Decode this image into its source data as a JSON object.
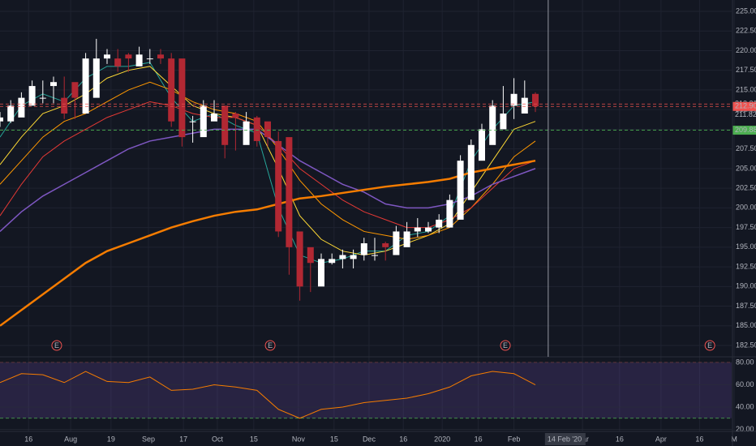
{
  "chart_data": {
    "type": "candlestick",
    "xlim": [
      0,
      205
    ],
    "xticks": [
      {
        "value": 8,
        "label": "16"
      },
      {
        "value": 19.8,
        "label": "Aug"
      },
      {
        "value": 31.1,
        "label": "19"
      },
      {
        "value": 41.6,
        "label": "Sep"
      },
      {
        "value": 51.4,
        "label": "17"
      },
      {
        "value": 60.9,
        "label": "Oct"
      },
      {
        "value": 71.1,
        "label": "15"
      },
      {
        "value": 83.6,
        "label": "Nov"
      },
      {
        "value": 93.6,
        "label": "15"
      },
      {
        "value": 103.4,
        "label": "Dec"
      },
      {
        "value": 113,
        "label": "16"
      },
      {
        "value": 123.9,
        "label": "2020"
      },
      {
        "value": 134,
        "label": "16"
      },
      {
        "value": 144,
        "label": "Feb"
      },
      {
        "value": 163.2,
        "label": "Mar"
      },
      {
        "value": 173.6,
        "label": "16"
      },
      {
        "value": 185.2,
        "label": "Apr"
      },
      {
        "value": 196,
        "label": "16"
      },
      {
        "value": 205.7,
        "label": "M"
      }
    ],
    "ylim": [
      181.06,
      226.44
    ],
    "yticks": [
      {
        "value": 225,
        "label": "225.00"
      },
      {
        "value": 222.5,
        "label": "222.50"
      },
      {
        "value": 220,
        "label": "220.00"
      },
      {
        "value": 217.5,
        "label": "217.50"
      },
      {
        "value": 215,
        "label": "215.00"
      },
      {
        "value": 212.5,
        "label": "212.50"
      },
      {
        "value": 210,
        "label": "210.00"
      },
      {
        "value": 207.5,
        "label": "207.50"
      },
      {
        "value": 205,
        "label": "205.00"
      },
      {
        "value": 202.5,
        "label": "202.50"
      },
      {
        "value": 200,
        "label": "200.00"
      },
      {
        "value": 197.5,
        "label": "197.50"
      },
      {
        "value": 195,
        "label": "195.00"
      },
      {
        "value": 192.5,
        "label": "192.50"
      },
      {
        "value": 190,
        "label": "190.00"
      },
      {
        "value": 187.5,
        "label": "187.50"
      },
      {
        "value": 185,
        "label": "185.00"
      },
      {
        "value": 182.5,
        "label": "182.50"
      }
    ],
    "grid": true,
    "up_color": "#ffffff",
    "down_color": "#b22833",
    "candles": {
      "x": [
        0,
        3,
        6,
        9,
        12,
        15,
        18,
        21,
        24,
        27,
        30,
        33,
        36,
        39,
        42,
        45,
        48,
        51,
        54,
        57,
        60,
        63,
        66,
        69,
        72,
        75,
        78,
        81,
        84,
        87,
        90,
        93,
        96,
        99,
        102,
        105,
        108,
        111,
        114,
        117,
        120,
        123,
        126,
        129,
        132,
        135,
        138,
        141,
        144,
        147,
        150
      ],
      "open": [
        211,
        211,
        211.5,
        213,
        214,
        215.5,
        214,
        216,
        212,
        214,
        219,
        219,
        219.5,
        218,
        219,
        219.5,
        219,
        219,
        211,
        209,
        211,
        213,
        212,
        208,
        211.5,
        211,
        208.5,
        209,
        197,
        195,
        190,
        193,
        193.5,
        193.5,
        194,
        194,
        195.5,
        194,
        195,
        197,
        197,
        197.5,
        197.5,
        198.5,
        201,
        206,
        208,
        210,
        213,
        212,
        214.5
      ],
      "high": [
        212.2,
        213.7,
        214.7,
        216.2,
        216.2,
        216.7,
        216.7,
        214.7,
        219.7,
        221.5,
        220.2,
        220.2,
        219.7,
        220.5,
        220.2,
        220.2,
        219.7,
        211.7,
        211.7,
        213.7,
        213.7,
        212.7,
        212.2,
        212.2,
        211.7,
        209.7,
        209.7,
        197.7,
        195.7,
        193.7,
        194.2,
        194.2,
        194.7,
        194.7,
        196.2,
        196.2,
        195.7,
        197.7,
        198.2,
        198.7,
        198.2,
        199.2,
        201.7,
        206.7,
        208.7,
        210.7,
        213.7,
        215.5,
        216.5,
        216.2,
        214.7
      ],
      "low": [
        210.3,
        210.8,
        212.3,
        213.3,
        213.3,
        213.3,
        211.3,
        211.3,
        213.3,
        218.3,
        218.3,
        217.3,
        217.3,
        218.3,
        218.3,
        218.3,
        210.3,
        207.8,
        208.3,
        210.3,
        211.3,
        206.3,
        207.3,
        210.3,
        207.8,
        207.8,
        196.3,
        191.5,
        188.2,
        189.3,
        192.3,
        192.8,
        192.3,
        192.3,
        193.3,
        193.3,
        193.3,
        194.3,
        196.3,
        196.3,
        196.8,
        196.8,
        197.8,
        200.3,
        205.3,
        207.3,
        209.3,
        211.3,
        211.3,
        213.3,
        212.2
      ],
      "close": [
        211.5,
        213,
        214,
        215.5,
        214,
        216,
        212,
        214,
        219,
        219,
        219.5,
        218,
        219,
        219.5,
        219,
        219,
        211,
        209,
        211,
        213,
        212,
        208,
        211.5,
        211,
        208.5,
        209,
        197,
        195,
        190,
        193,
        193.5,
        193.5,
        194,
        194,
        195.5,
        194,
        195,
        197,
        197,
        197.5,
        197.5,
        198.5,
        201,
        206,
        208,
        210,
        213,
        212,
        214.5,
        214,
        212.9
      ]
    },
    "series": [
      {
        "color": "#26a69a",
        "width": 1,
        "x": [
          0,
          6,
          12,
          18,
          24,
          30,
          36,
          42,
          48,
          54,
          60,
          66,
          72,
          78,
          84,
          90,
          96,
          102,
          108,
          114,
          120,
          126,
          132,
          138,
          144,
          150
        ],
        "values": [
          209,
          213,
          214.5,
          213.5,
          216.5,
          218,
          218,
          218.5,
          214,
          211,
          212,
          210.5,
          209.5,
          200,
          194,
          193,
          193.5,
          194.5,
          194.5,
          196.5,
          197,
          199,
          206,
          210,
          213,
          213.5
        ]
      },
      {
        "color": "#fdd835",
        "width": 1,
        "x": [
          0,
          6,
          12,
          18,
          24,
          30,
          36,
          42,
          48,
          54,
          60,
          66,
          72,
          78,
          84,
          90,
          96,
          102,
          108,
          114,
          120,
          126,
          132,
          138,
          144,
          150
        ],
        "values": [
          205.5,
          209,
          212,
          213,
          214.5,
          216.5,
          217.5,
          218,
          215.5,
          213,
          212,
          211.5,
          210.5,
          205,
          199,
          196,
          194.5,
          194,
          194.5,
          195.5,
          196.5,
          198,
          202,
          206,
          210,
          211
        ]
      },
      {
        "color": "#ff9800",
        "width": 1,
        "x": [
          0,
          6,
          12,
          18,
          24,
          30,
          36,
          42,
          48,
          54,
          60,
          66,
          72,
          78,
          84,
          90,
          96,
          102,
          108,
          114,
          120,
          126,
          132,
          138,
          144,
          150
        ],
        "values": [
          203,
          206,
          209,
          211,
          212,
          213.5,
          215,
          216,
          215,
          213.5,
          212.5,
          212,
          211,
          207.5,
          203.5,
          200.5,
          198.5,
          197,
          196.5,
          196,
          196.5,
          197.5,
          200,
          203,
          206.5,
          208.5
        ]
      },
      {
        "color": "#e53935",
        "width": 1,
        "x": [
          0,
          6,
          12,
          18,
          24,
          30,
          36,
          42,
          48,
          54,
          60,
          66,
          72,
          78,
          84,
          90,
          96,
          102,
          108,
          114,
          120,
          126,
          132,
          138,
          144,
          150
        ],
        "values": [
          199,
          203,
          206.5,
          208.5,
          210,
          211.5,
          212.5,
          213.5,
          213,
          212,
          211.5,
          211.5,
          210.5,
          208,
          205,
          203,
          201,
          199.5,
          198.5,
          197.5,
          197.5,
          198.5,
          200,
          202.5,
          205,
          206
        ]
      },
      {
        "color": "#7e57c2",
        "width": 1.5,
        "x": [
          0,
          6,
          12,
          18,
          24,
          30,
          36,
          42,
          48,
          54,
          60,
          66,
          72,
          78,
          84,
          90,
          96,
          102,
          108,
          114,
          120,
          126,
          132,
          138,
          144,
          150
        ],
        "values": [
          197,
          199.5,
          201.5,
          203,
          204.5,
          206,
          207.5,
          208.5,
          209,
          209.5,
          210,
          210,
          210,
          208,
          206,
          204.5,
          203,
          202,
          200.5,
          200,
          200,
          200.5,
          201.5,
          203,
          204,
          205
        ]
      },
      {
        "color": "#f57c00",
        "width": 2.5,
        "x": [
          0,
          6,
          12,
          18,
          24,
          30,
          36,
          42,
          48,
          54,
          60,
          66,
          72,
          78,
          84,
          90,
          96,
          102,
          108,
          114,
          120,
          126,
          132,
          138,
          144,
          150
        ],
        "values": [
          185,
          187,
          189,
          191,
          193,
          194.5,
          195.5,
          196.5,
          197.5,
          198.3,
          199,
          199.5,
          199.8,
          200.5,
          201.2,
          201.5,
          201.9,
          202.3,
          202.7,
          203,
          203.3,
          203.7,
          204.5,
          205,
          205.5,
          206
        ]
      }
    ],
    "price_lines": [
      {
        "value": 213.21,
        "label": "213.21",
        "color": "#ef5350",
        "line": true,
        "box": false
      },
      {
        "value": 212.9,
        "label": "212.90",
        "color": "#ef5350",
        "line": true,
        "box": true
      },
      {
        "value": 211.82,
        "label": "211.82",
        "color": "#d1d4dc",
        "line": false,
        "box": false
      },
      {
        "value": 209.88,
        "label": "209.88",
        "color": "#4caf50",
        "line": true,
        "box": true
      }
    ],
    "events": {
      "label": "E",
      "x": [
        15.9,
        75.7,
        141.6,
        198.9
      ],
      "color": "#ef5350"
    },
    "crosshair": {
      "value": 153.6,
      "label": "14 Feb '20"
    },
    "rsi": {
      "color": "#f57c00",
      "ylim": [
        18.2,
        85.1
      ],
      "yticks": [
        {
          "value": 80,
          "label": "80.00"
        },
        {
          "value": 60,
          "label": "60.00"
        },
        {
          "value": 40,
          "label": "40.00"
        },
        {
          "value": 20,
          "label": "20.00"
        }
      ],
      "bands": [
        30,
        80
      ],
      "x": [
        0,
        6,
        12,
        18,
        24,
        30,
        36,
        42,
        48,
        54,
        60,
        66,
        72,
        78,
        84,
        90,
        96,
        102,
        108,
        114,
        120,
        126,
        132,
        138,
        144,
        150
      ],
      "values": [
        62,
        70,
        69,
        62,
        72,
        63,
        62,
        67,
        55,
        56,
        60,
        58,
        55,
        38,
        30,
        38,
        40,
        44,
        46,
        48,
        52,
        58,
        68,
        72,
        70,
        60
      ]
    }
  }
}
